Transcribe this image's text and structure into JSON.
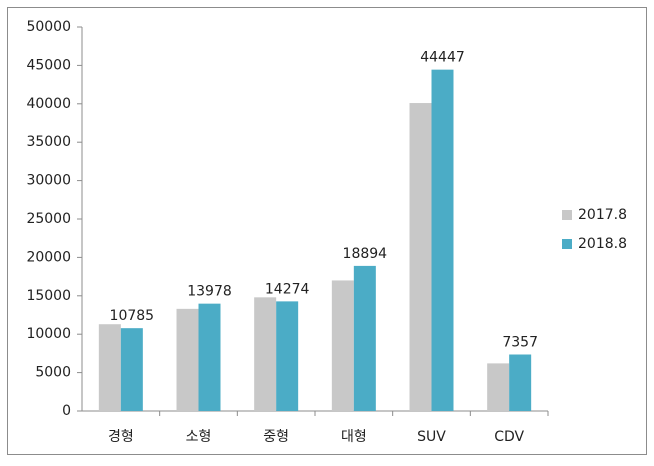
{
  "chart_data": {
    "type": "bar",
    "categories": [
      "경형",
      "소형",
      "중형",
      "대형",
      "SUV",
      "CDV"
    ],
    "series": [
      {
        "name": "2017.8",
        "color": "#c8c8c8",
        "values": [
          11300,
          13300,
          14800,
          17000,
          40100,
          6200
        ],
        "data_labels": false
      },
      {
        "name": "2018.8",
        "color": "#4bacc6",
        "values": [
          10785,
          13978,
          14274,
          18894,
          44447,
          7357
        ],
        "data_labels": true
      }
    ],
    "ylim": [
      0,
      50000
    ],
    "yticks": [
      0,
      5000,
      10000,
      15000,
      20000,
      25000,
      30000,
      35000,
      40000,
      45000,
      50000
    ],
    "grid": false,
    "legend": "right"
  }
}
